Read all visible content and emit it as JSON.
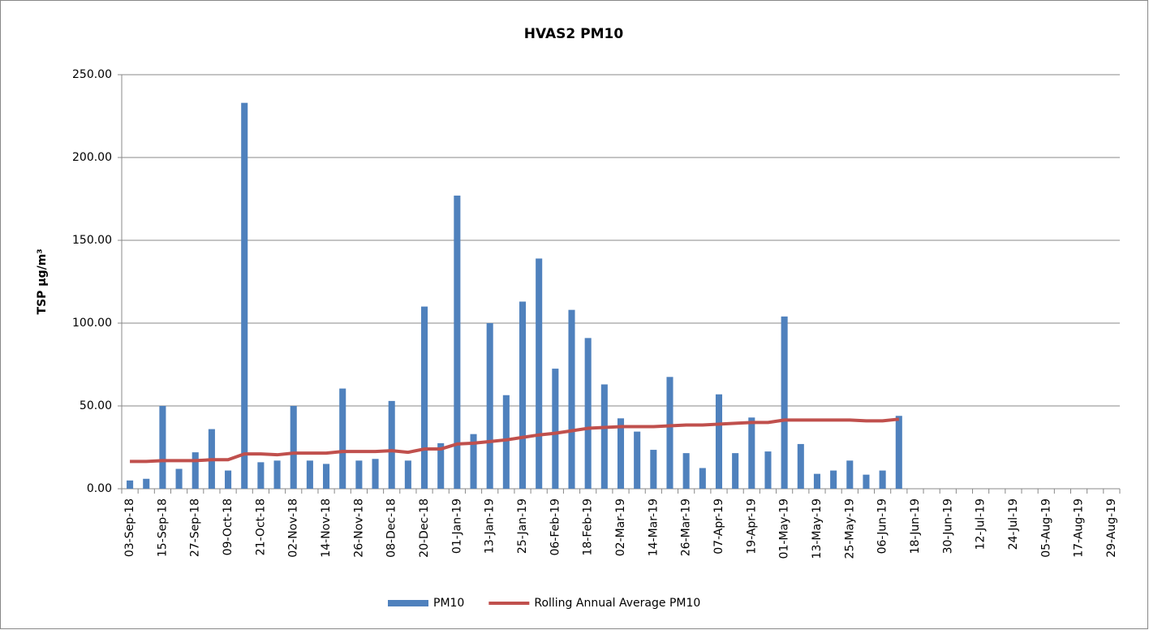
{
  "chart_data": {
    "type": "bar_line",
    "title": "HVAS2 PM10",
    "ylabel": "TSP µg/m³",
    "categories": [
      "03-Sep-18",
      null,
      "15-Sep-18",
      null,
      "27-Sep-18",
      null,
      "09-Oct-18",
      null,
      "21-Oct-18",
      null,
      "02-Nov-18",
      null,
      "14-Nov-18",
      null,
      "26-Nov-18",
      null,
      "08-Dec-18",
      null,
      "20-Dec-18",
      null,
      "01-Jan-19",
      null,
      "13-Jan-19",
      null,
      "25-Jan-19",
      null,
      "06-Feb-19",
      null,
      "18-Feb-19",
      null,
      "02-Mar-19",
      null,
      "14-Mar-19",
      null,
      "26-Mar-19",
      null,
      "07-Apr-19",
      null,
      "19-Apr-19",
      null,
      "01-May-19",
      null,
      "13-May-19",
      null,
      "25-May-19",
      null,
      "06-Jun-19",
      null,
      "18-Jun-19",
      null,
      "30-Jun-19",
      null,
      "12-Jul-19",
      null,
      "24-Jul-19",
      null,
      "05-Aug-19",
      null,
      "17-Aug-19",
      null,
      "29-Aug-19"
    ],
    "series": [
      {
        "name": "PM10",
        "kind": "bar",
        "color": "#4f81bd",
        "values": [
          5,
          6,
          50,
          12,
          22,
          36,
          11,
          233,
          16,
          17,
          50,
          17,
          15,
          60.5,
          17,
          18,
          53,
          17,
          110,
          27.5,
          177,
          33,
          100,
          56.5,
          113,
          139,
          72.5,
          108,
          91,
          63,
          42.5,
          34.5,
          23.5,
          67.5,
          21.5,
          12.5,
          57,
          21.5,
          43,
          22.5,
          104,
          27,
          9,
          11,
          17,
          8.5,
          11,
          44,
          null,
          null,
          null,
          null,
          null,
          null,
          null,
          null,
          null,
          null,
          null,
          null,
          null
        ]
      },
      {
        "name": "Rolling Annual Average PM10",
        "kind": "line",
        "color": "#c0504d",
        "values": [
          16.5,
          16.5,
          17,
          17,
          17,
          17.5,
          17.5,
          21,
          21,
          20.5,
          21.5,
          21.5,
          21.5,
          22.5,
          22.5,
          22.5,
          23,
          22,
          24,
          24,
          27,
          27.5,
          28.5,
          29.5,
          31,
          32.5,
          33.5,
          35,
          36.5,
          37,
          37.5,
          37.5,
          37.5,
          38,
          38.5,
          38.5,
          39,
          39.5,
          40,
          40,
          41.5,
          41.5,
          41.5,
          41.5,
          41.5,
          41,
          41,
          42,
          null,
          null,
          null,
          null,
          null,
          null,
          null,
          null,
          null,
          null,
          null,
          null,
          null
        ]
      }
    ],
    "ylim": [
      0,
      250
    ],
    "yticks": [
      {
        "value": 0,
        "label": "0.00"
      },
      {
        "value": 50,
        "label": "50.00"
      },
      {
        "value": 100,
        "label": "100.00"
      },
      {
        "value": 150,
        "label": "150.00"
      },
      {
        "value": 200,
        "label": "200.00"
      },
      {
        "value": 250,
        "label": "250.00"
      }
    ],
    "grid": true,
    "legend": "bottom"
  }
}
